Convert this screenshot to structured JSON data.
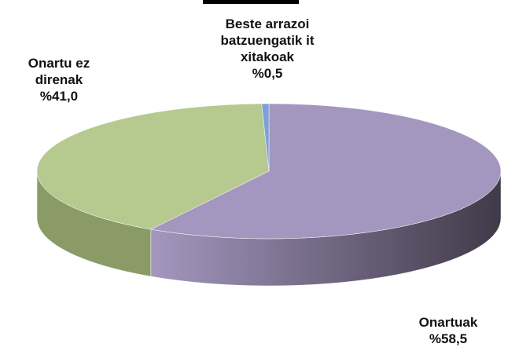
{
  "chart_data": {
    "type": "pie",
    "categories": [
      "Onartuak",
      "Onartu ez direnak",
      "Beste arrazoi batzuengatik itxitakoak"
    ],
    "values": [
      58.5,
      41.0,
      0.5
    ],
    "value_labels": [
      "%58,5",
      "%41,0",
      "%0,5"
    ],
    "colors": [
      "#a497bf",
      "#b6c98f",
      "#7f9fd8"
    ],
    "side_colors": [
      "#5a5068",
      "#8a9b68",
      "#5f78a8"
    ]
  }
}
